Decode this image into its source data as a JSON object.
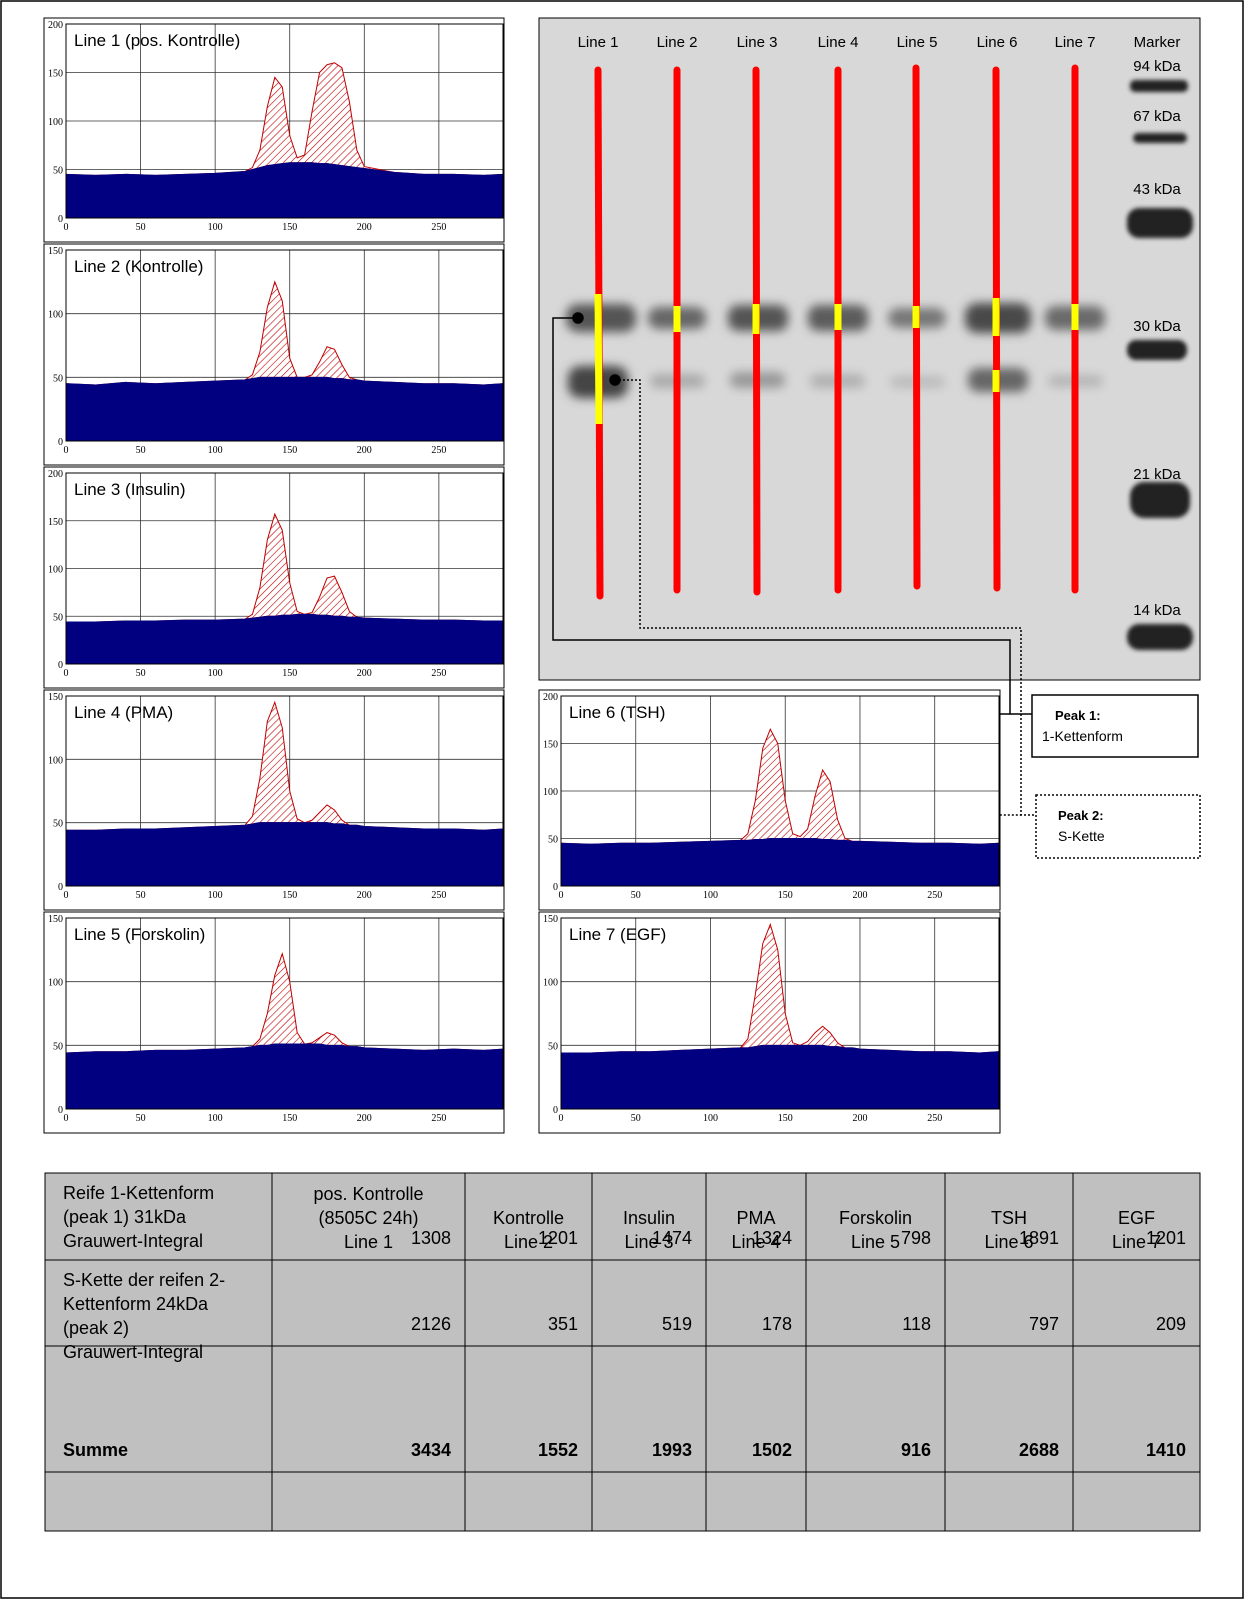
{
  "chart_data": [
    {
      "type": "area",
      "title": "Line 1 (pos. Kontrolle)",
      "x": [
        0,
        20,
        40,
        60,
        80,
        100,
        120,
        125,
        130,
        135,
        140,
        145,
        150,
        155,
        160,
        165,
        170,
        175,
        180,
        185,
        190,
        195,
        200,
        220,
        240,
        260,
        280,
        293
      ],
      "values": [
        45,
        44,
        45,
        44,
        45,
        46,
        48,
        52,
        70,
        115,
        145,
        135,
        85,
        62,
        65,
        110,
        150,
        158,
        160,
        155,
        120,
        70,
        53,
        47,
        45,
        45,
        44,
        45
      ],
      "baseline": [
        45,
        44,
        45,
        44,
        45,
        46,
        48,
        50,
        52,
        54,
        55,
        56,
        57,
        57,
        57,
        57,
        56,
        56,
        55,
        54,
        53,
        52,
        51,
        47,
        45,
        45,
        44,
        45
      ],
      "xlim": [
        0,
        293
      ],
      "ylim": [
        0,
        200
      ],
      "xticks": [
        0,
        50,
        100,
        150,
        200,
        250
      ],
      "yticks": [
        0,
        50,
        100,
        150,
        200
      ],
      "fill_color": "#000080",
      "peak_color": "#c00000",
      "grid": true
    },
    {
      "type": "area",
      "title": "Line 2 (Kontrolle)",
      "x": [
        0,
        20,
        40,
        60,
        80,
        100,
        120,
        125,
        130,
        135,
        140,
        145,
        150,
        155,
        160,
        165,
        170,
        175,
        180,
        185,
        190,
        195,
        200,
        220,
        240,
        260,
        280,
        293
      ],
      "values": [
        45,
        44,
        46,
        45,
        46,
        47,
        48,
        52,
        70,
        105,
        125,
        110,
        65,
        50,
        50,
        52,
        62,
        74,
        72,
        60,
        50,
        48,
        47,
        46,
        45,
        45,
        44,
        45
      ],
      "baseline": [
        45,
        44,
        46,
        45,
        46,
        47,
        48,
        49,
        50,
        50,
        50,
        50,
        50,
        50,
        50,
        50,
        50,
        50,
        49,
        49,
        48,
        48,
        47,
        46,
        45,
        45,
        44,
        45
      ],
      "xlim": [
        0,
        293
      ],
      "ylim": [
        0,
        150
      ],
      "xticks": [
        0,
        50,
        100,
        150,
        200,
        250
      ],
      "yticks": [
        0,
        50,
        100,
        150
      ],
      "fill_color": "#000080",
      "peak_color": "#c00000",
      "grid": true
    },
    {
      "type": "area",
      "title": "Line 3 (Insulin)",
      "x": [
        0,
        20,
        40,
        60,
        80,
        100,
        120,
        125,
        130,
        135,
        140,
        145,
        150,
        155,
        160,
        165,
        170,
        175,
        180,
        185,
        190,
        195,
        200,
        220,
        240,
        260,
        280,
        293
      ],
      "values": [
        44,
        44,
        45,
        45,
        46,
        46,
        47,
        52,
        80,
        130,
        157,
        140,
        85,
        55,
        52,
        54,
        70,
        90,
        92,
        75,
        55,
        49,
        48,
        47,
        46,
        46,
        45,
        45
      ],
      "baseline": [
        44,
        44,
        45,
        45,
        46,
        46,
        47,
        48,
        49,
        50,
        50,
        51,
        51,
        52,
        52,
        52,
        51,
        51,
        50,
        50,
        49,
        49,
        48,
        47,
        46,
        46,
        45,
        45
      ],
      "xlim": [
        0,
        293
      ],
      "ylim": [
        0,
        200
      ],
      "xticks": [
        0,
        50,
        100,
        150,
        200,
        250
      ],
      "yticks": [
        0,
        50,
        100,
        150,
        200
      ],
      "fill_color": "#000080",
      "peak_color": "#c00000",
      "grid": true
    },
    {
      "type": "area",
      "title": "Line 4 (PMA)",
      "x": [
        0,
        20,
        40,
        60,
        80,
        100,
        120,
        125,
        130,
        135,
        140,
        145,
        150,
        155,
        160,
        165,
        170,
        175,
        180,
        185,
        190,
        195,
        200,
        220,
        240,
        260,
        280,
        293
      ],
      "values": [
        44,
        44,
        45,
        45,
        46,
        47,
        48,
        55,
        85,
        130,
        145,
        125,
        75,
        53,
        50,
        52,
        58,
        64,
        60,
        52,
        48,
        48,
        47,
        46,
        45,
        45,
        44,
        45
      ],
      "baseline": [
        44,
        44,
        45,
        45,
        46,
        47,
        48,
        49,
        50,
        50,
        50,
        50,
        50,
        50,
        50,
        50,
        50,
        50,
        49,
        49,
        48,
        48,
        47,
        46,
        45,
        45,
        44,
        45
      ],
      "xlim": [
        0,
        293
      ],
      "ylim": [
        0,
        150
      ],
      "xticks": [
        0,
        50,
        100,
        150,
        200,
        250
      ],
      "yticks": [
        0,
        50,
        100,
        150
      ],
      "fill_color": "#000080",
      "peak_color": "#c00000",
      "grid": true
    },
    {
      "type": "area",
      "title": "Line 5 (Forskolin)",
      "x": [
        0,
        20,
        40,
        60,
        80,
        100,
        120,
        125,
        130,
        135,
        140,
        145,
        150,
        155,
        160,
        165,
        170,
        175,
        180,
        185,
        190,
        195,
        200,
        220,
        240,
        260,
        280,
        293
      ],
      "values": [
        44,
        45,
        45,
        46,
        46,
        47,
        48,
        49,
        55,
        75,
        105,
        122,
        100,
        60,
        51,
        52,
        56,
        60,
        58,
        52,
        49,
        49,
        48,
        47,
        46,
        47,
        46,
        47
      ],
      "baseline": [
        44,
        45,
        45,
        46,
        46,
        47,
        48,
        49,
        50,
        50,
        51,
        51,
        51,
        51,
        51,
        51,
        51,
        50,
        50,
        50,
        49,
        49,
        48,
        47,
        46,
        47,
        46,
        47
      ],
      "xlim": [
        0,
        293
      ],
      "ylim": [
        0,
        150
      ],
      "xticks": [
        0,
        50,
        100,
        150,
        200,
        250
      ],
      "yticks": [
        0,
        50,
        100,
        150
      ],
      "fill_color": "#000080",
      "peak_color": "#c00000",
      "grid": true
    },
    {
      "type": "area",
      "title": "Line 6 (TSH)",
      "x": [
        0,
        20,
        40,
        60,
        80,
        100,
        120,
        125,
        130,
        135,
        140,
        145,
        150,
        155,
        160,
        165,
        170,
        175,
        180,
        185,
        190,
        195,
        200,
        220,
        240,
        260,
        280,
        293
      ],
      "values": [
        45,
        44,
        45,
        45,
        46,
        47,
        48,
        55,
        90,
        145,
        165,
        150,
        90,
        55,
        52,
        60,
        95,
        122,
        110,
        70,
        50,
        47,
        47,
        46,
        45,
        45,
        44,
        45
      ],
      "baseline": [
        45,
        44,
        45,
        45,
        46,
        47,
        48,
        48,
        49,
        49,
        50,
        50,
        50,
        50,
        50,
        50,
        50,
        49,
        49,
        48,
        48,
        47,
        47,
        46,
        45,
        45,
        44,
        45
      ],
      "xlim": [
        0,
        293
      ],
      "ylim": [
        0,
        200
      ],
      "xticks": [
        0,
        50,
        100,
        150,
        200,
        250
      ],
      "yticks": [
        0,
        50,
        100,
        150,
        200
      ],
      "fill_color": "#000080",
      "peak_color": "#c00000",
      "grid": true
    },
    {
      "type": "area",
      "title": "Line 7 (EGF)",
      "x": [
        0,
        20,
        40,
        60,
        80,
        100,
        120,
        125,
        130,
        135,
        140,
        145,
        150,
        155,
        160,
        165,
        170,
        175,
        180,
        185,
        190,
        195,
        200,
        220,
        240,
        260,
        280,
        293
      ],
      "values": [
        44,
        44,
        45,
        45,
        46,
        47,
        48,
        55,
        90,
        130,
        145,
        125,
        75,
        52,
        50,
        53,
        60,
        65,
        60,
        52,
        48,
        48,
        47,
        46,
        45,
        45,
        44,
        45
      ],
      "baseline": [
        44,
        44,
        45,
        45,
        46,
        47,
        48,
        48,
        49,
        50,
        50,
        50,
        50,
        50,
        50,
        50,
        50,
        50,
        49,
        49,
        48,
        48,
        47,
        46,
        45,
        45,
        44,
        45
      ],
      "xlim": [
        0,
        293
      ],
      "ylim": [
        0,
        150
      ],
      "xticks": [
        0,
        50,
        100,
        150,
        200,
        250
      ],
      "yticks": [
        0,
        50,
        100,
        150
      ],
      "fill_color": "#000080",
      "peak_color": "#c00000",
      "grid": true
    }
  ],
  "gel": {
    "lanes": [
      "Line 1",
      "Line 2",
      "Line 3",
      "Line 4",
      "Line 5",
      "Line 6",
      "Line 7"
    ],
    "marker_label": "Marker",
    "marker_sizes": [
      "94 kDa",
      "67 kDa",
      "43 kDa",
      "30 kDa",
      "21 kDa",
      "14 kDa"
    ]
  },
  "annotations": {
    "peak1": {
      "title": "Peak 1:",
      "text": "1-Kettenform"
    },
    "peak2": {
      "title": "Peak 2:",
      "text": "S-Kette"
    }
  },
  "table": {
    "header": [
      [
        "pos. Kontrolle",
        "(8505C 24h)",
        "Line 1"
      ],
      [
        "Kontrolle",
        "Line 2"
      ],
      [
        "Insulin",
        "Line 3"
      ],
      [
        "PMA",
        "Line 4"
      ],
      [
        "Forskolin",
        "Line 5"
      ],
      [
        "TSH",
        "Line 6"
      ],
      [
        "EGF",
        "Line 7"
      ]
    ],
    "rows": [
      {
        "label": [
          "Reife 1-Kettenform",
          "(peak 1) 31kDa",
          "Grauwert-Integral"
        ],
        "values": [
          1308,
          1201,
          1474,
          1324,
          798,
          1891,
          1201
        ]
      },
      {
        "label": [
          "S-Kette der reifen 2-",
          "Kettenform 24kDa",
          "(peak 2)",
          "Grauwert-Integral"
        ],
        "values": [
          2126,
          351,
          519,
          178,
          118,
          797,
          209
        ]
      },
      {
        "label": [
          "Summe"
        ],
        "values": [
          3434,
          1552,
          1993,
          1502,
          916,
          2688,
          1410
        ]
      }
    ]
  }
}
